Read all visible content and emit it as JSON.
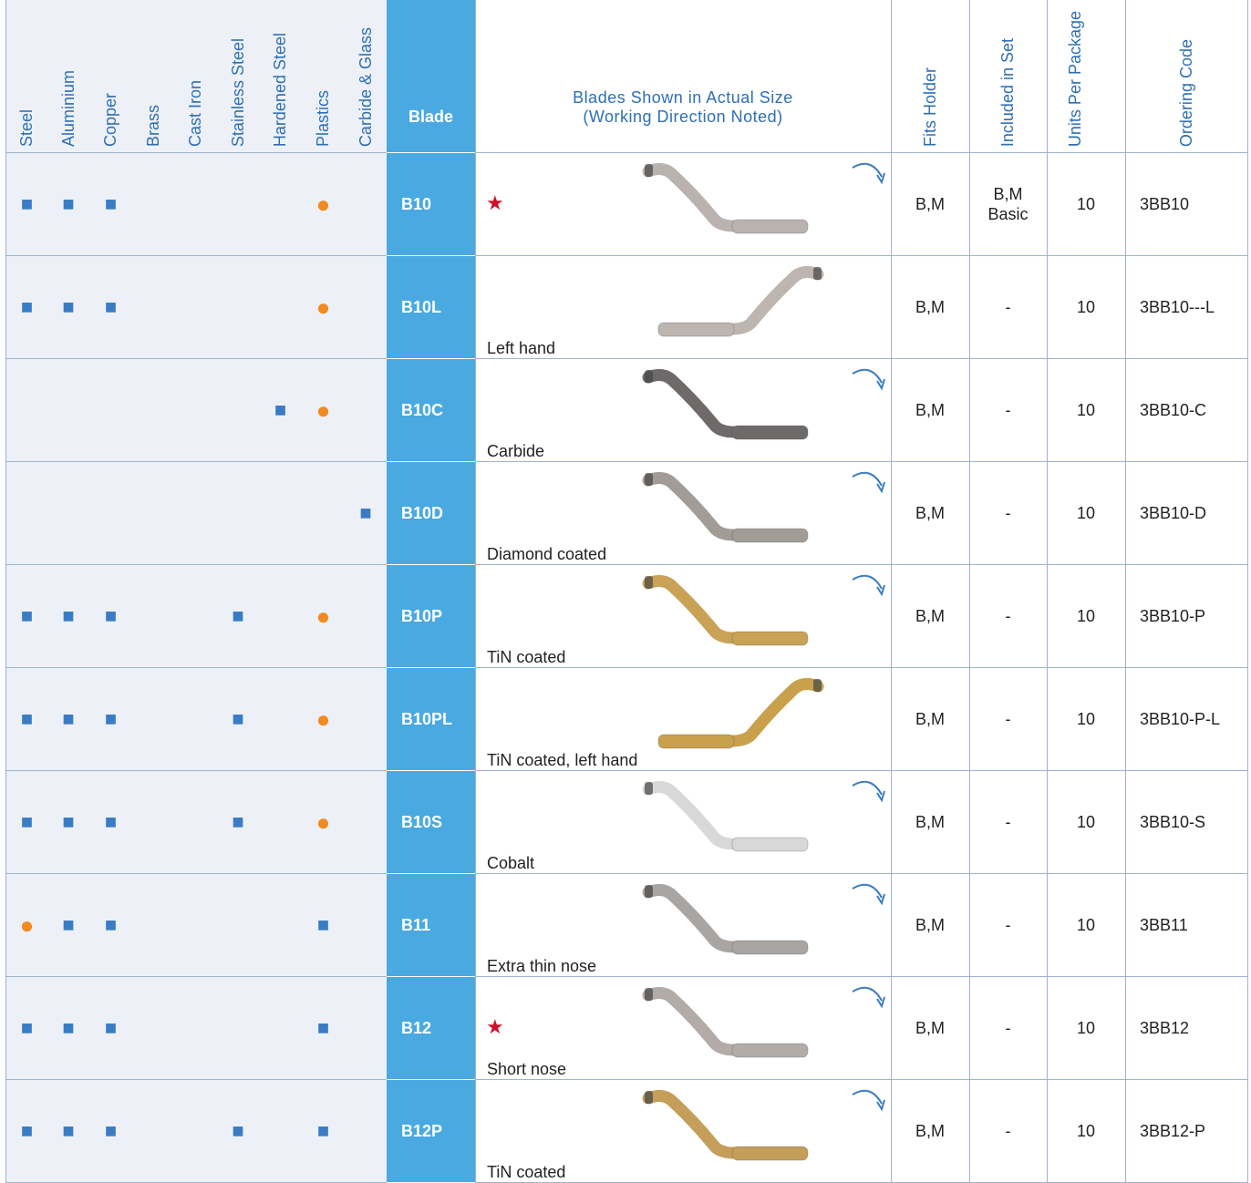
{
  "header": {
    "materials": [
      "Steel",
      "Aluminium",
      "Copper",
      "Brass",
      "Cast Iron",
      "Stainless Steel",
      "Hardened Steel",
      "Plastics",
      "Carbide & Glass"
    ],
    "blade": "Blade",
    "image": [
      "Blades Shown in Actual Size",
      "(Working  Direction  Noted)"
    ],
    "fits": "Fits Holder",
    "included": "Included in Set",
    "units": "Units Per Package",
    "code": "Ordering Code"
  },
  "symbol_colors": {
    "■": "#3a7cc4",
    "●": "#f18a21"
  },
  "rows": [
    {
      "materials": [
        "■",
        "■",
        "■",
        null,
        null,
        null,
        null,
        "●",
        null
      ],
      "blade": "B10",
      "mark": "★",
      "direction": "right",
      "blade_color": "#b9b2ae",
      "fits": "B,M",
      "included": "B,M\nBasic",
      "units": "10",
      "code": "3BB10"
    },
    {
      "materials": [
        "■",
        "■",
        "■",
        null,
        null,
        null,
        null,
        "●",
        null
      ],
      "blade": "B10L",
      "note": "Left hand",
      "direction": "left",
      "blade_color": "#bdb5b0",
      "fits": "B,M",
      "included": "-",
      "units": "10",
      "code": "3BB10---L"
    },
    {
      "materials": [
        null,
        null,
        null,
        null,
        null,
        null,
        "■",
        "●",
        null
      ],
      "blade": "B10C",
      "note": "Carbide",
      "direction": "right",
      "blade_color": "#6e6a6a",
      "fits": "B,M",
      "included": "-",
      "units": "10",
      "code": "3BB10-C"
    },
    {
      "materials": [
        null,
        null,
        null,
        null,
        null,
        null,
        null,
        null,
        "■"
      ],
      "blade": "B10D",
      "note": "Diamond coated",
      "direction": "right",
      "blade_color": "#a29c96",
      "fits": "B,M",
      "included": "-",
      "units": "10",
      "code": "3BB10-D"
    },
    {
      "materials": [
        "■",
        "■",
        "■",
        null,
        null,
        "■",
        null,
        "●",
        null
      ],
      "blade": "B10P",
      "note": "TiN coated",
      "direction": "right",
      "blade_color": "#c9a255",
      "fits": "B,M",
      "included": "-",
      "units": "10",
      "code": "3BB10-P"
    },
    {
      "materials": [
        "■",
        "■",
        "■",
        null,
        null,
        "■",
        null,
        "●",
        null
      ],
      "blade": "B10PL",
      "note": "TiN coated, left hand",
      "direction": "left",
      "blade_color": "#c9a04c",
      "fits": "B,M",
      "included": "-",
      "units": "10",
      "code": "3BB10-P-L"
    },
    {
      "materials": [
        "■",
        "■",
        "■",
        null,
        null,
        "■",
        null,
        "●",
        null
      ],
      "blade": "B10S",
      "note": "Cobalt",
      "direction": "right",
      "blade_color": "#d8d8d8",
      "fits": "B,M",
      "included": "-",
      "units": "10",
      "code": "3BB10-S"
    },
    {
      "materials": [
        "●",
        "■",
        "■",
        null,
        null,
        null,
        null,
        "■",
        null
      ],
      "blade": "B11",
      "note": "Extra thin nose",
      "direction": "right",
      "blade_color": "#a9a5a2",
      "fits": "B,M",
      "included": "-",
      "units": "10",
      "code": "3BB11"
    },
    {
      "materials": [
        "■",
        "■",
        "■",
        null,
        null,
        null,
        null,
        "■",
        null
      ],
      "blade": "B12",
      "mark": "★",
      "note": "Short nose",
      "direction": "right",
      "blade_color": "#b3aba8",
      "fits": "B,M",
      "included": "-",
      "units": "10",
      "code": "3BB12"
    },
    {
      "materials": [
        "■",
        "■",
        "■",
        null,
        null,
        "■",
        null,
        "■",
        null
      ],
      "blade": "B12P",
      "note": "TiN coated",
      "direction": "right",
      "blade_color": "#c49e5a",
      "fits": "B,M",
      "included": "-",
      "units": "10",
      "code": "3BB12-P"
    }
  ]
}
